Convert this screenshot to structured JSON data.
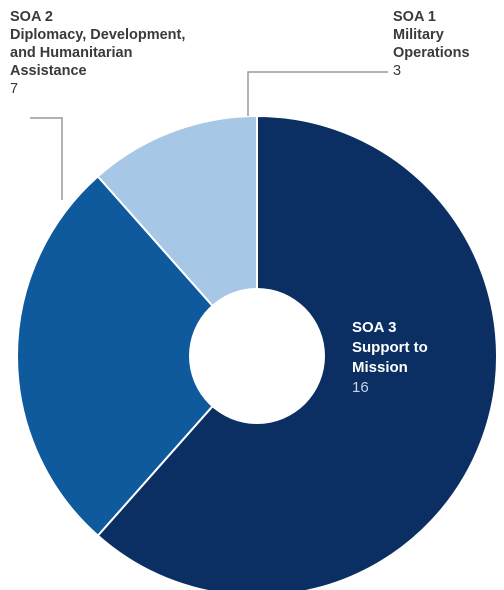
{
  "chart_data": {
    "type": "pie",
    "style": "donut",
    "slices": [
      {
        "id": "soa3",
        "name_lines": [
          "SOA 3",
          "Support to",
          "Mission"
        ],
        "value": 16,
        "color": "#0b2f63"
      },
      {
        "id": "soa2",
        "name_lines": [
          "SOA 2",
          "Diplomacy, Development,",
          "and Humanitarian",
          "Assistance"
        ],
        "value": 7,
        "color": "#0e5a9c"
      },
      {
        "id": "soa1",
        "name_lines": [
          "SOA 1",
          "Military",
          "Operations"
        ],
        "value": 3,
        "color": "#a7c7e7"
      }
    ]
  }
}
